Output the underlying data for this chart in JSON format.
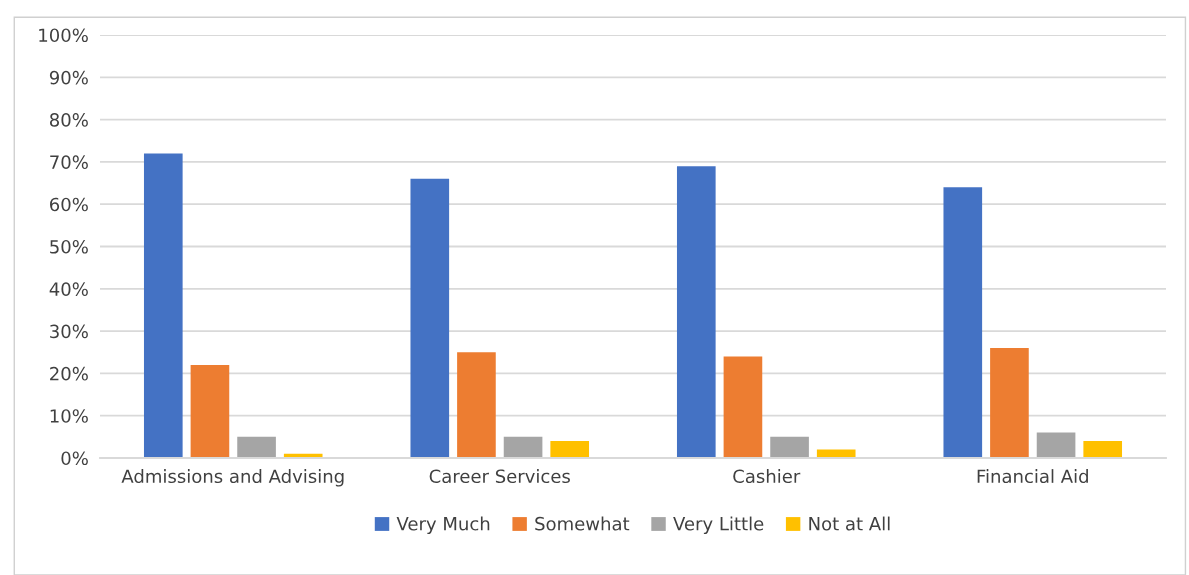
{
  "chart_data": {
    "type": "bar",
    "categories": [
      "Admissions and Advising",
      "Career Services",
      "Cashier",
      "Financial Aid"
    ],
    "series": [
      {
        "name": "Very Much",
        "color": "#4472c4",
        "values": [
          72,
          66,
          69,
          64
        ]
      },
      {
        "name": "Somewhat",
        "color": "#ed7d31",
        "values": [
          22,
          25,
          24,
          26
        ]
      },
      {
        "name": "Very Little",
        "color": "#a5a5a5",
        "values": [
          5,
          5,
          5,
          6
        ]
      },
      {
        "name": "Not at All",
        "color": "#ffc000",
        "values": [
          1,
          4,
          2,
          4
        ]
      }
    ],
    "ylim": [
      0,
      100
    ],
    "yticks": [
      {
        "value": 0,
        "label": "0%"
      },
      {
        "value": 10,
        "label": "10%"
      },
      {
        "value": 20,
        "label": "20%"
      },
      {
        "value": 30,
        "label": "30%"
      },
      {
        "value": 40,
        "label": "40%"
      },
      {
        "value": 50,
        "label": "50%"
      },
      {
        "value": 60,
        "label": "60%"
      },
      {
        "value": 70,
        "label": "70%"
      },
      {
        "value": 80,
        "label": "80%"
      },
      {
        "value": 90,
        "label": "90%"
      },
      {
        "value": 100,
        "label": "100%"
      }
    ],
    "grid": "y",
    "legend": "bottom"
  }
}
